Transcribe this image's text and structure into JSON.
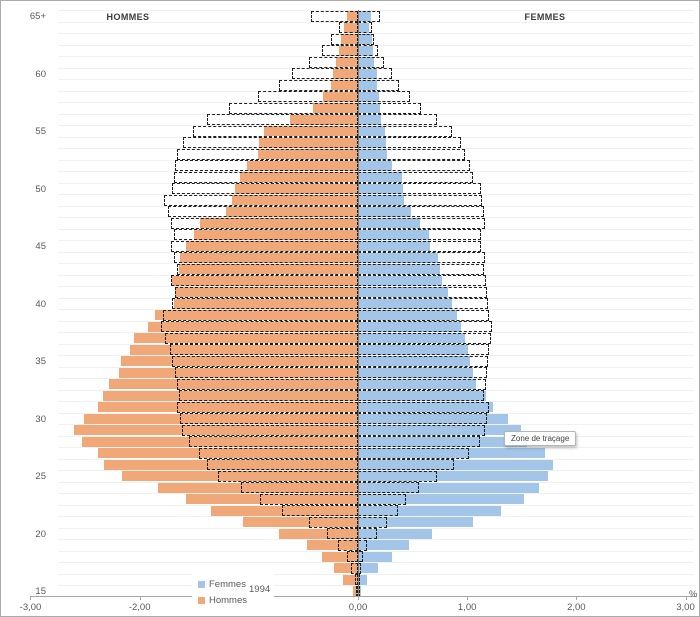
{
  "chart_data": {
    "type": "bar",
    "subtype": "population-pyramid",
    "title_left": "HOMMES",
    "title_right": "FEMMES",
    "unit_label": "%",
    "tooltip": "Zone de traçage",
    "x_axis": {
      "range": [
        -3,
        3
      ],
      "tick_labels": [
        "-3,00",
        "-2,00",
        "0,00",
        "1,00",
        "2,00",
        "3,00"
      ],
      "tick_values": [
        -3,
        -2,
        0,
        1,
        2,
        3
      ]
    },
    "y_axis": {
      "tick_labels": [
        "65+",
        "60",
        "55",
        "50",
        "45",
        "40",
        "35",
        "30",
        "25",
        "20",
        "15"
      ],
      "tick_ages": [
        65,
        60,
        55,
        50,
        45,
        40,
        35,
        30,
        25,
        20,
        15
      ]
    },
    "ages_start": 15,
    "ages_end": 65,
    "series": [
      {
        "name": "Hommes",
        "side": "left",
        "style": "solid",
        "color": "#f0a878",
        "values": [
          0.05,
          0.14,
          0.22,
          0.33,
          0.47,
          0.72,
          1.05,
          1.35,
          1.58,
          1.83,
          2.16,
          2.33,
          2.38,
          2.53,
          2.6,
          2.51,
          2.38,
          2.34,
          2.28,
          2.19,
          2.17,
          2.09,
          2.05,
          1.92,
          1.86,
          1.69,
          1.68,
          1.7,
          1.64,
          1.63,
          1.58,
          1.5,
          1.45,
          1.21,
          1.15,
          1.13,
          1.08,
          1.02,
          0.92,
          0.91,
          0.86,
          0.62,
          0.41,
          0.32,
          0.25,
          0.23,
          0.2,
          0.17,
          0.16,
          0.13,
          0.1
        ]
      },
      {
        "name": "Femmes",
        "side": "right",
        "style": "solid",
        "color": "#a3c6e8",
        "values": [
          0.03,
          0.08,
          0.18,
          0.31,
          0.47,
          0.68,
          1.05,
          1.31,
          1.52,
          1.66,
          1.74,
          1.79,
          1.71,
          1.55,
          1.49,
          1.37,
          1.24,
          1.17,
          1.08,
          1.05,
          1.03,
          1.01,
          0.98,
          0.94,
          0.91,
          0.86,
          0.82,
          0.77,
          0.75,
          0.73,
          0.66,
          0.65,
          0.57,
          0.49,
          0.42,
          0.41,
          0.4,
          0.31,
          0.27,
          0.26,
          0.25,
          0.21,
          0.2,
          0.19,
          0.17,
          0.17,
          0.15,
          0.14,
          0.13,
          0.1,
          0.12
        ]
      },
      {
        "name": "Hommes 1994",
        "side": "left",
        "style": "dashed",
        "color": "#1f1f1f",
        "values": [
          0.02,
          0.03,
          0.06,
          0.1,
          0.18,
          0.28,
          0.45,
          0.7,
          0.9,
          1.07,
          1.28,
          1.38,
          1.46,
          1.55,
          1.61,
          1.63,
          1.66,
          1.64,
          1.66,
          1.68,
          1.7,
          1.72,
          1.77,
          1.8,
          1.79,
          1.7,
          1.68,
          1.71,
          1.66,
          1.69,
          1.71,
          1.69,
          1.71,
          1.74,
          1.78,
          1.7,
          1.69,
          1.68,
          1.66,
          1.6,
          1.51,
          1.38,
          1.18,
          0.92,
          0.72,
          0.6,
          0.45,
          0.33,
          0.25,
          0.17,
          0.43
        ]
      },
      {
        "name": "Femmes 1994",
        "side": "right",
        "style": "dashed",
        "color": "#1f1f1f",
        "values": [
          0.01,
          0.02,
          0.03,
          0.05,
          0.08,
          0.17,
          0.27,
          0.37,
          0.44,
          0.56,
          0.72,
          0.88,
          1.02,
          1.12,
          1.16,
          1.18,
          1.2,
          1.15,
          1.17,
          1.18,
          1.19,
          1.2,
          1.22,
          1.23,
          1.2,
          1.19,
          1.18,
          1.17,
          1.15,
          1.16,
          1.13,
          1.13,
          1.16,
          1.15,
          1.14,
          1.13,
          1.05,
          1.03,
          0.98,
          0.94,
          0.86,
          0.72,
          0.58,
          0.48,
          0.38,
          0.31,
          0.24,
          0.18,
          0.15,
          0.13,
          0.2
        ]
      }
    ],
    "legend": {
      "items": [
        {
          "label": "Femmes",
          "color": "#a3c6e8"
        },
        {
          "label": "Hommes",
          "color": "#f0a878"
        }
      ],
      "year_label": "1994"
    }
  }
}
